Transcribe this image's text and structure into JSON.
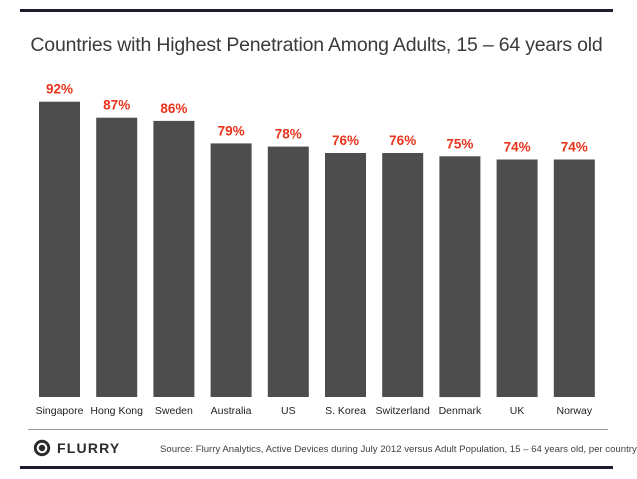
{
  "title": "Countries with Highest Penetration Among Adults, 15 – 64 years old",
  "source": "Source: Flurry Analytics, Active Devices during July 2012 versus Adult Population, 15 – 64 years old, per country",
  "logo": {
    "text": "FLURRY",
    "icon": "flurry-logo-icon"
  },
  "colors": {
    "bar": "#4d4d4d",
    "value_label": "#e8341c",
    "rule": "#1c1c2c"
  },
  "chart_data": {
    "type": "bar",
    "title": "Countries with Highest Penetration Among Adults, 15 – 64 years old",
    "xlabel": "",
    "ylabel": "",
    "categories": [
      "Singapore",
      "Hong Kong",
      "Sweden",
      "Australia",
      "US",
      "S. Korea",
      "Switzerland",
      "Denmark",
      "UK",
      "Norway"
    ],
    "values": [
      92,
      87,
      86,
      79,
      78,
      76,
      76,
      75,
      74,
      74
    ],
    "value_labels": [
      "92%",
      "87%",
      "86%",
      "79%",
      "78%",
      "76%",
      "76%",
      "75%",
      "74%",
      "74%"
    ],
    "ylim": [
      0,
      100
    ],
    "grid": false,
    "legend": "none"
  }
}
